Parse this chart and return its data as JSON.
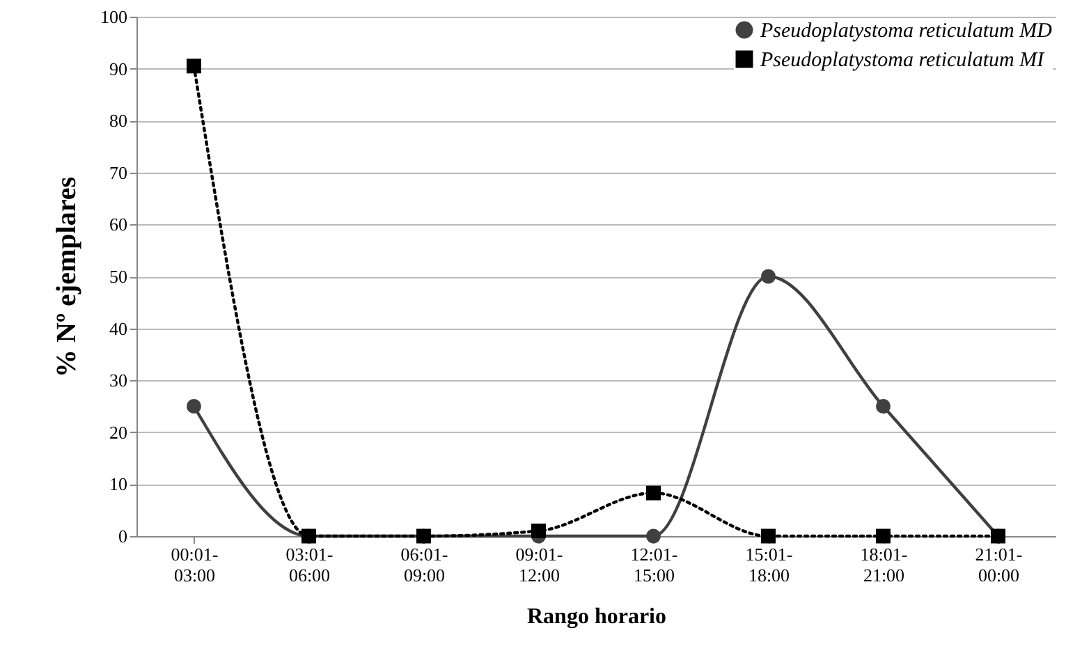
{
  "chart_data": {
    "type": "line",
    "xlabel": "Rango horario",
    "ylabel": "% Nº ejemplares",
    "categories": [
      "00:01-03:00",
      "03:01-06:00",
      "06:01-09:00",
      "09:01-12:00",
      "12:01-15:00",
      "15:01-18:00",
      "18:01-21:00",
      "21:01-00:00"
    ],
    "series": [
      {
        "name": "Pseudoplatystoma reticulatum MD",
        "color": "#404040",
        "marker": "circle",
        "line_style": "solid",
        "values": [
          25,
          0,
          0,
          0,
          0,
          50,
          25,
          0
        ]
      },
      {
        "name": "Pseudoplatystoma reticulatum MI",
        "color": "#000000",
        "marker": "square",
        "line_style": "dotted",
        "values": [
          90.5,
          0,
          0,
          1,
          8.3,
          0,
          0,
          0
        ]
      }
    ],
    "ylim": [
      0,
      100
    ],
    "yticks": [
      0,
      10,
      20,
      30,
      40,
      50,
      60,
      70,
      80,
      90,
      100
    ],
    "grid": "y",
    "legend": "top right"
  }
}
